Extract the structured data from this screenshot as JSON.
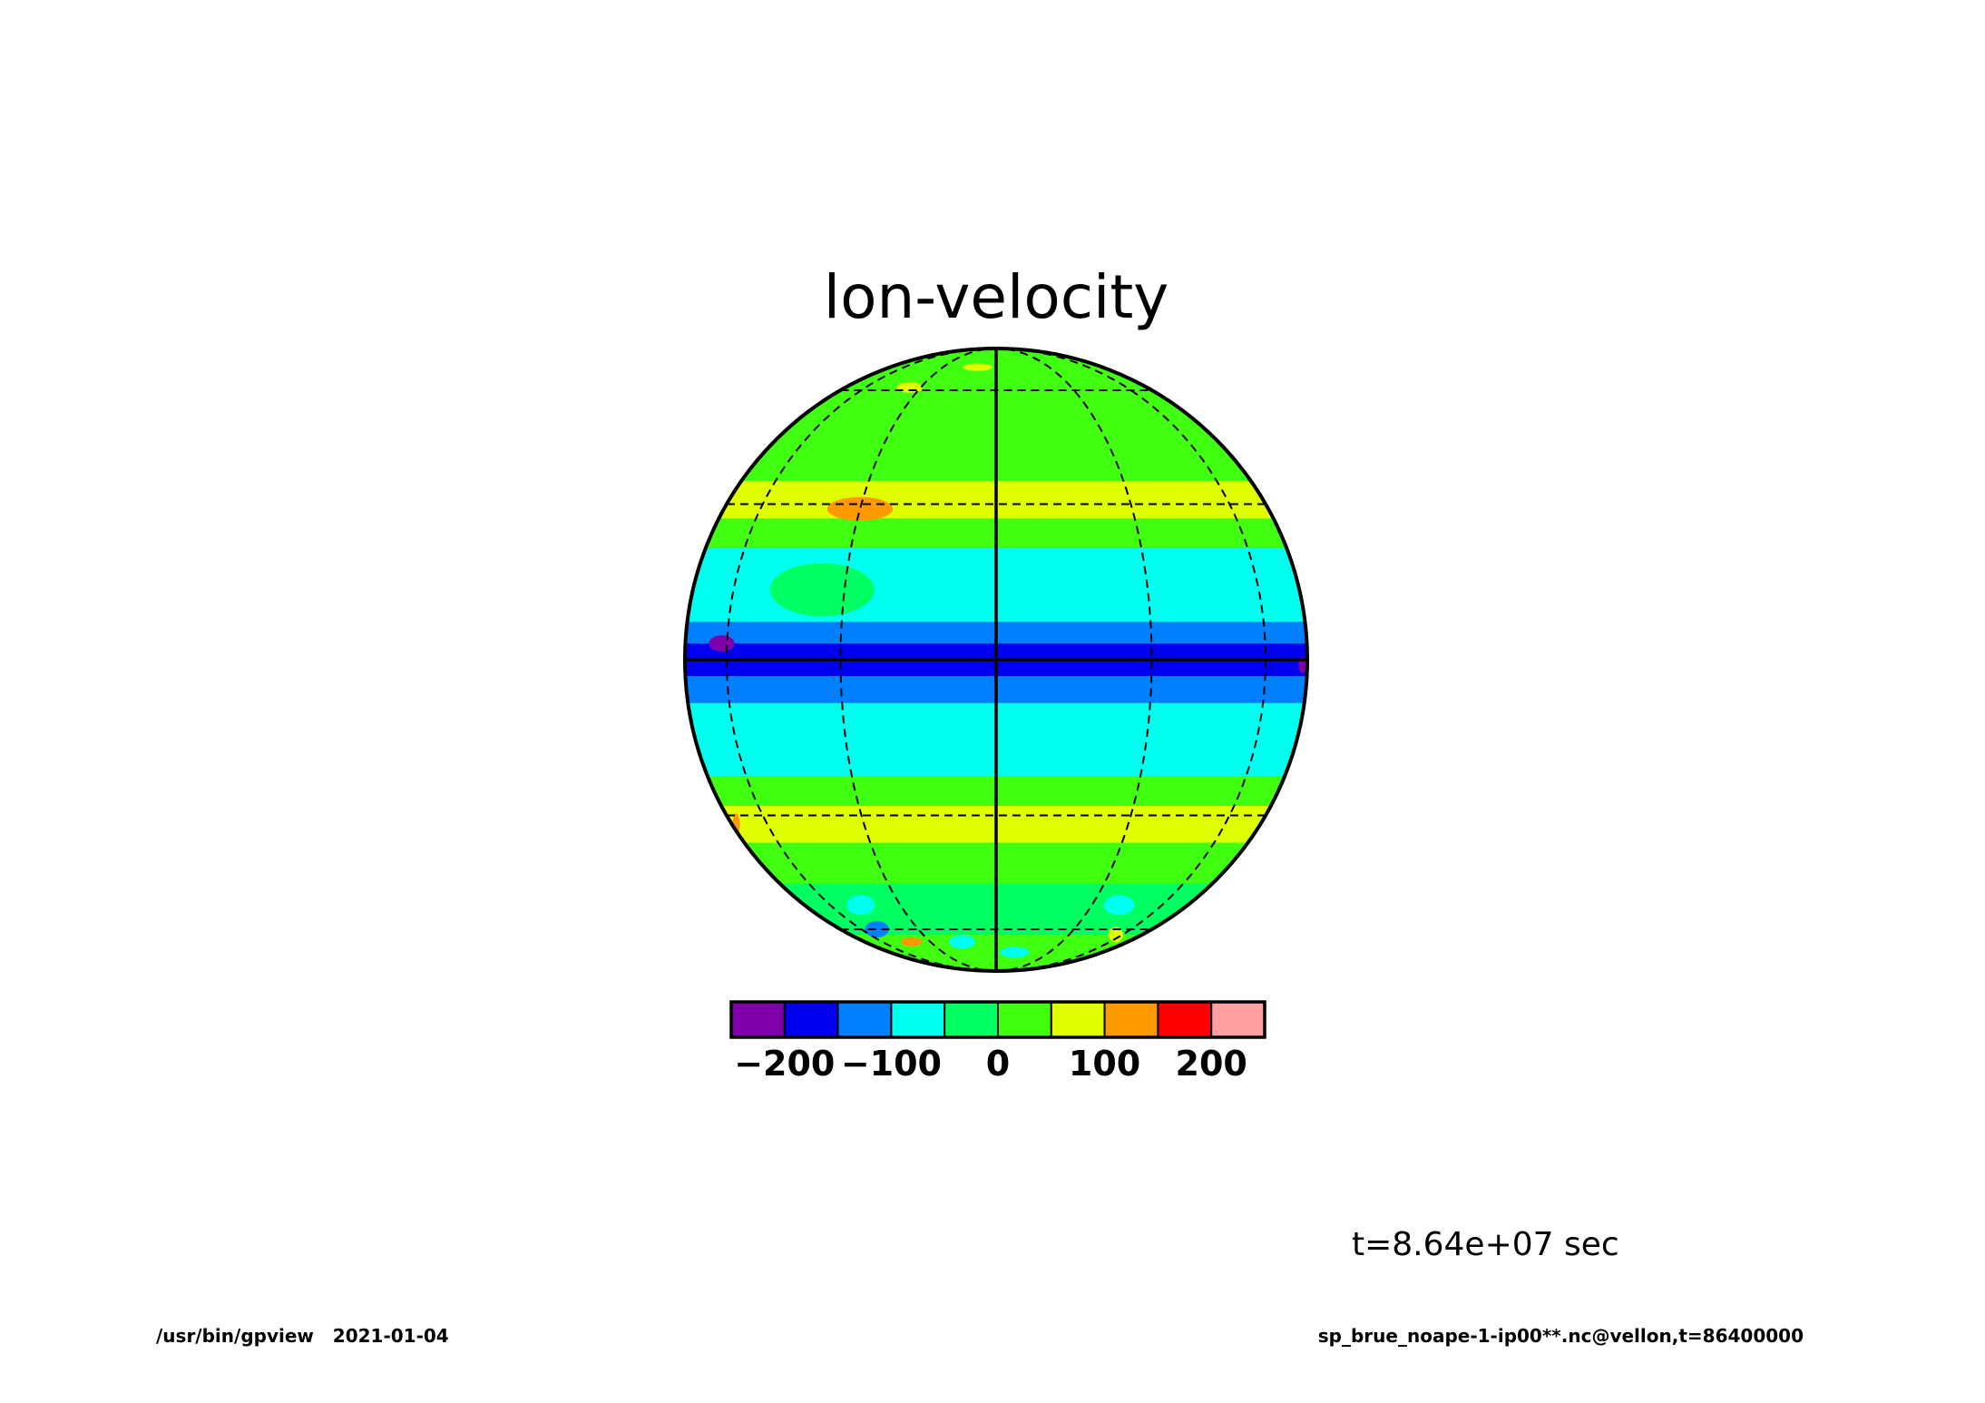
{
  "chart_data": {
    "type": "heatmap",
    "projection": "orthographic",
    "title": "lon-velocity",
    "colorbar": {
      "colors": [
        "#7f00aa",
        "#0000f0",
        "#0080ff",
        "#00ffee",
        "#00ff60",
        "#40ff10",
        "#e0ff00",
        "#ff9900",
        "#ff0000",
        "#ffa0a0"
      ],
      "boundaries": [
        -250,
        -200,
        -150,
        -100,
        -50,
        0,
        50,
        100,
        150,
        200,
        250
      ],
      "tick_values": [
        -200,
        -100,
        0,
        100,
        200
      ],
      "tick_labels": [
        "−200",
        "−100",
        "0",
        "100",
        "200"
      ]
    },
    "graticule": {
      "meridians_deg": [
        -90,
        -60,
        -30,
        0,
        30,
        60,
        90
      ],
      "parallels_deg": [
        -60,
        -30,
        0,
        30,
        60
      ]
    },
    "bands": [
      {
        "lat_from": 90,
        "lat_to": 66,
        "value": 25
      },
      {
        "lat_from": 66,
        "lat_to": 52,
        "value": 20
      },
      {
        "lat_from": 52,
        "lat_to": 41,
        "value": 15
      },
      {
        "lat_from": 41,
        "lat_to": 35,
        "value": 25
      },
      {
        "lat_from": 35,
        "lat_to": 27,
        "value": 75
      },
      {
        "lat_from": 27,
        "lat_to": 21,
        "value": 30
      },
      {
        "lat_from": 21,
        "lat_to": 12,
        "value": -75
      },
      {
        "lat_from": 12,
        "lat_to": 7,
        "value": -70
      },
      {
        "lat_from": 7,
        "lat_to": 3,
        "value": -125
      },
      {
        "lat_from": 3,
        "lat_to": -3,
        "value": -175
      },
      {
        "lat_from": -3,
        "lat_to": -8,
        "value": -125
      },
      {
        "lat_from": -8,
        "lat_to": -22,
        "value": -75
      },
      {
        "lat_from": -22,
        "lat_to": -28,
        "value": 30
      },
      {
        "lat_from": -28,
        "lat_to": -36,
        "value": 75
      },
      {
        "lat_from": -36,
        "lat_to": -46,
        "value": 25
      },
      {
        "lat_from": -46,
        "lat_to": -62,
        "value": -25
      },
      {
        "lat_from": -62,
        "lat_to": -90,
        "value": 25
      }
    ],
    "features": [
      {
        "lon": -30,
        "lat": 29,
        "dlon": 8,
        "dlat": 2.5,
        "value": 125
      },
      {
        "lon": -80,
        "lat": -32,
        "dlon": 4,
        "dlat": 2.5,
        "value": 125
      },
      {
        "lon": 80,
        "lat": -1,
        "dlon": 4,
        "dlat": 1.5,
        "value": -225
      },
      {
        "lon": -50,
        "lat": -60,
        "dlon": 7,
        "dlat": 3,
        "value": -125
      },
      {
        "lon": -40,
        "lat": -65,
        "dlon": 6,
        "dlat": 2,
        "value": 125
      },
      {
        "lon": -15,
        "lat": -65,
        "dlon": 6,
        "dlat": 3,
        "value": -75
      },
      {
        "lon": -10,
        "lat": 70,
        "dlon": 8,
        "dlat": 2,
        "value": 75
      },
      {
        "lon": -35,
        "lat": 61,
        "dlon": 6,
        "dlat": 2,
        "value": 75
      },
      {
        "lon": 40,
        "lat": -52,
        "dlon": 6,
        "dlat": 3,
        "value": -75
      },
      {
        "lon": 55,
        "lat": -62,
        "dlon": 5,
        "dlat": 3,
        "value": 75
      },
      {
        "lon": 10,
        "lat": -70,
        "dlon": 8,
        "dlat": 3,
        "value": -75
      },
      {
        "lon": -35,
        "lat": 13,
        "dlon": 12,
        "dlat": 5,
        "value": -50
      },
      {
        "lon": -45,
        "lat": -52,
        "dlon": 6,
        "dlat": 3,
        "value": -75
      },
      {
        "lon": -62,
        "lat": 3,
        "dlon": 5,
        "dlat": 1.5,
        "value": -225
      }
    ]
  },
  "annotations": {
    "time_label": "t=8.64e+07 sec",
    "footer_left": "/usr/bin/gpview   2021-01-04",
    "footer_right": "sp_brue_noape-1-ip00**.nc@vellon,t=86400000"
  }
}
